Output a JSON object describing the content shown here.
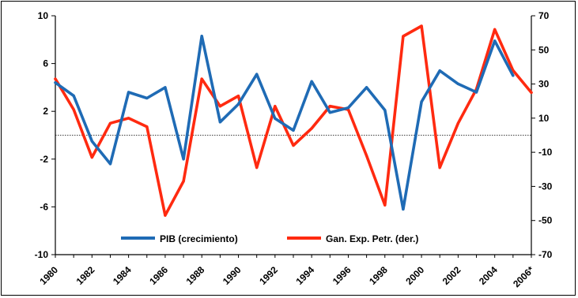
{
  "chart_data": {
    "type": "line",
    "title": "",
    "xlabel": "",
    "ylabel": "",
    "x": [
      1980,
      1981,
      1982,
      1983,
      1984,
      1985,
      1986,
      1987,
      1988,
      1989,
      1990,
      1991,
      1992,
      1993,
      1994,
      1995,
      1996,
      1997,
      1998,
      1999,
      2000,
      2001,
      2002,
      2003,
      2004,
      2005,
      2006
    ],
    "x_tick_labels": [
      "1980",
      "1982",
      "1984",
      "1986",
      "1988",
      "1990",
      "1992",
      "1994",
      "1996",
      "1998",
      "2000",
      "2002",
      "2004",
      "2006*"
    ],
    "y_left_ticks": [
      "10",
      "6",
      "2",
      "-2",
      "-6",
      "-10"
    ],
    "y_right_ticks": [
      "70",
      "50",
      "30",
      "10",
      "-10",
      "-30",
      "-50",
      "-70"
    ],
    "y_left_range": [
      -10,
      10
    ],
    "y_right_range": [
      -70,
      70
    ],
    "grid": false,
    "reference_line_left": 0,
    "legend_position": "bottom-center",
    "series": [
      {
        "name": "PIB (crecimiento)",
        "axis": "left",
        "color": "#1f6bb5",
        "values": [
          4.4,
          3.3,
          -0.5,
          -2.4,
          3.6,
          3.1,
          4.0,
          -2.0,
          8.3,
          1.1,
          2.6,
          5.1,
          1.4,
          0.4,
          4.5,
          1.9,
          2.3,
          4.0,
          2.1,
          -6.2,
          2.8,
          5.4,
          4.3,
          3.6,
          7.9,
          5.0,
          null
        ]
      },
      {
        "name": "Gan. Exp. Petr. (der.)",
        "axis": "right",
        "color": "#ff2a10",
        "values": [
          33,
          15,
          -13,
          7,
          10,
          5,
          -47,
          -27,
          33,
          17,
          23,
          -19,
          17,
          -6,
          4,
          17,
          15,
          -12,
          -41,
          58,
          64,
          -19,
          7,
          27,
          62,
          38,
          25
        ]
      }
    ]
  }
}
